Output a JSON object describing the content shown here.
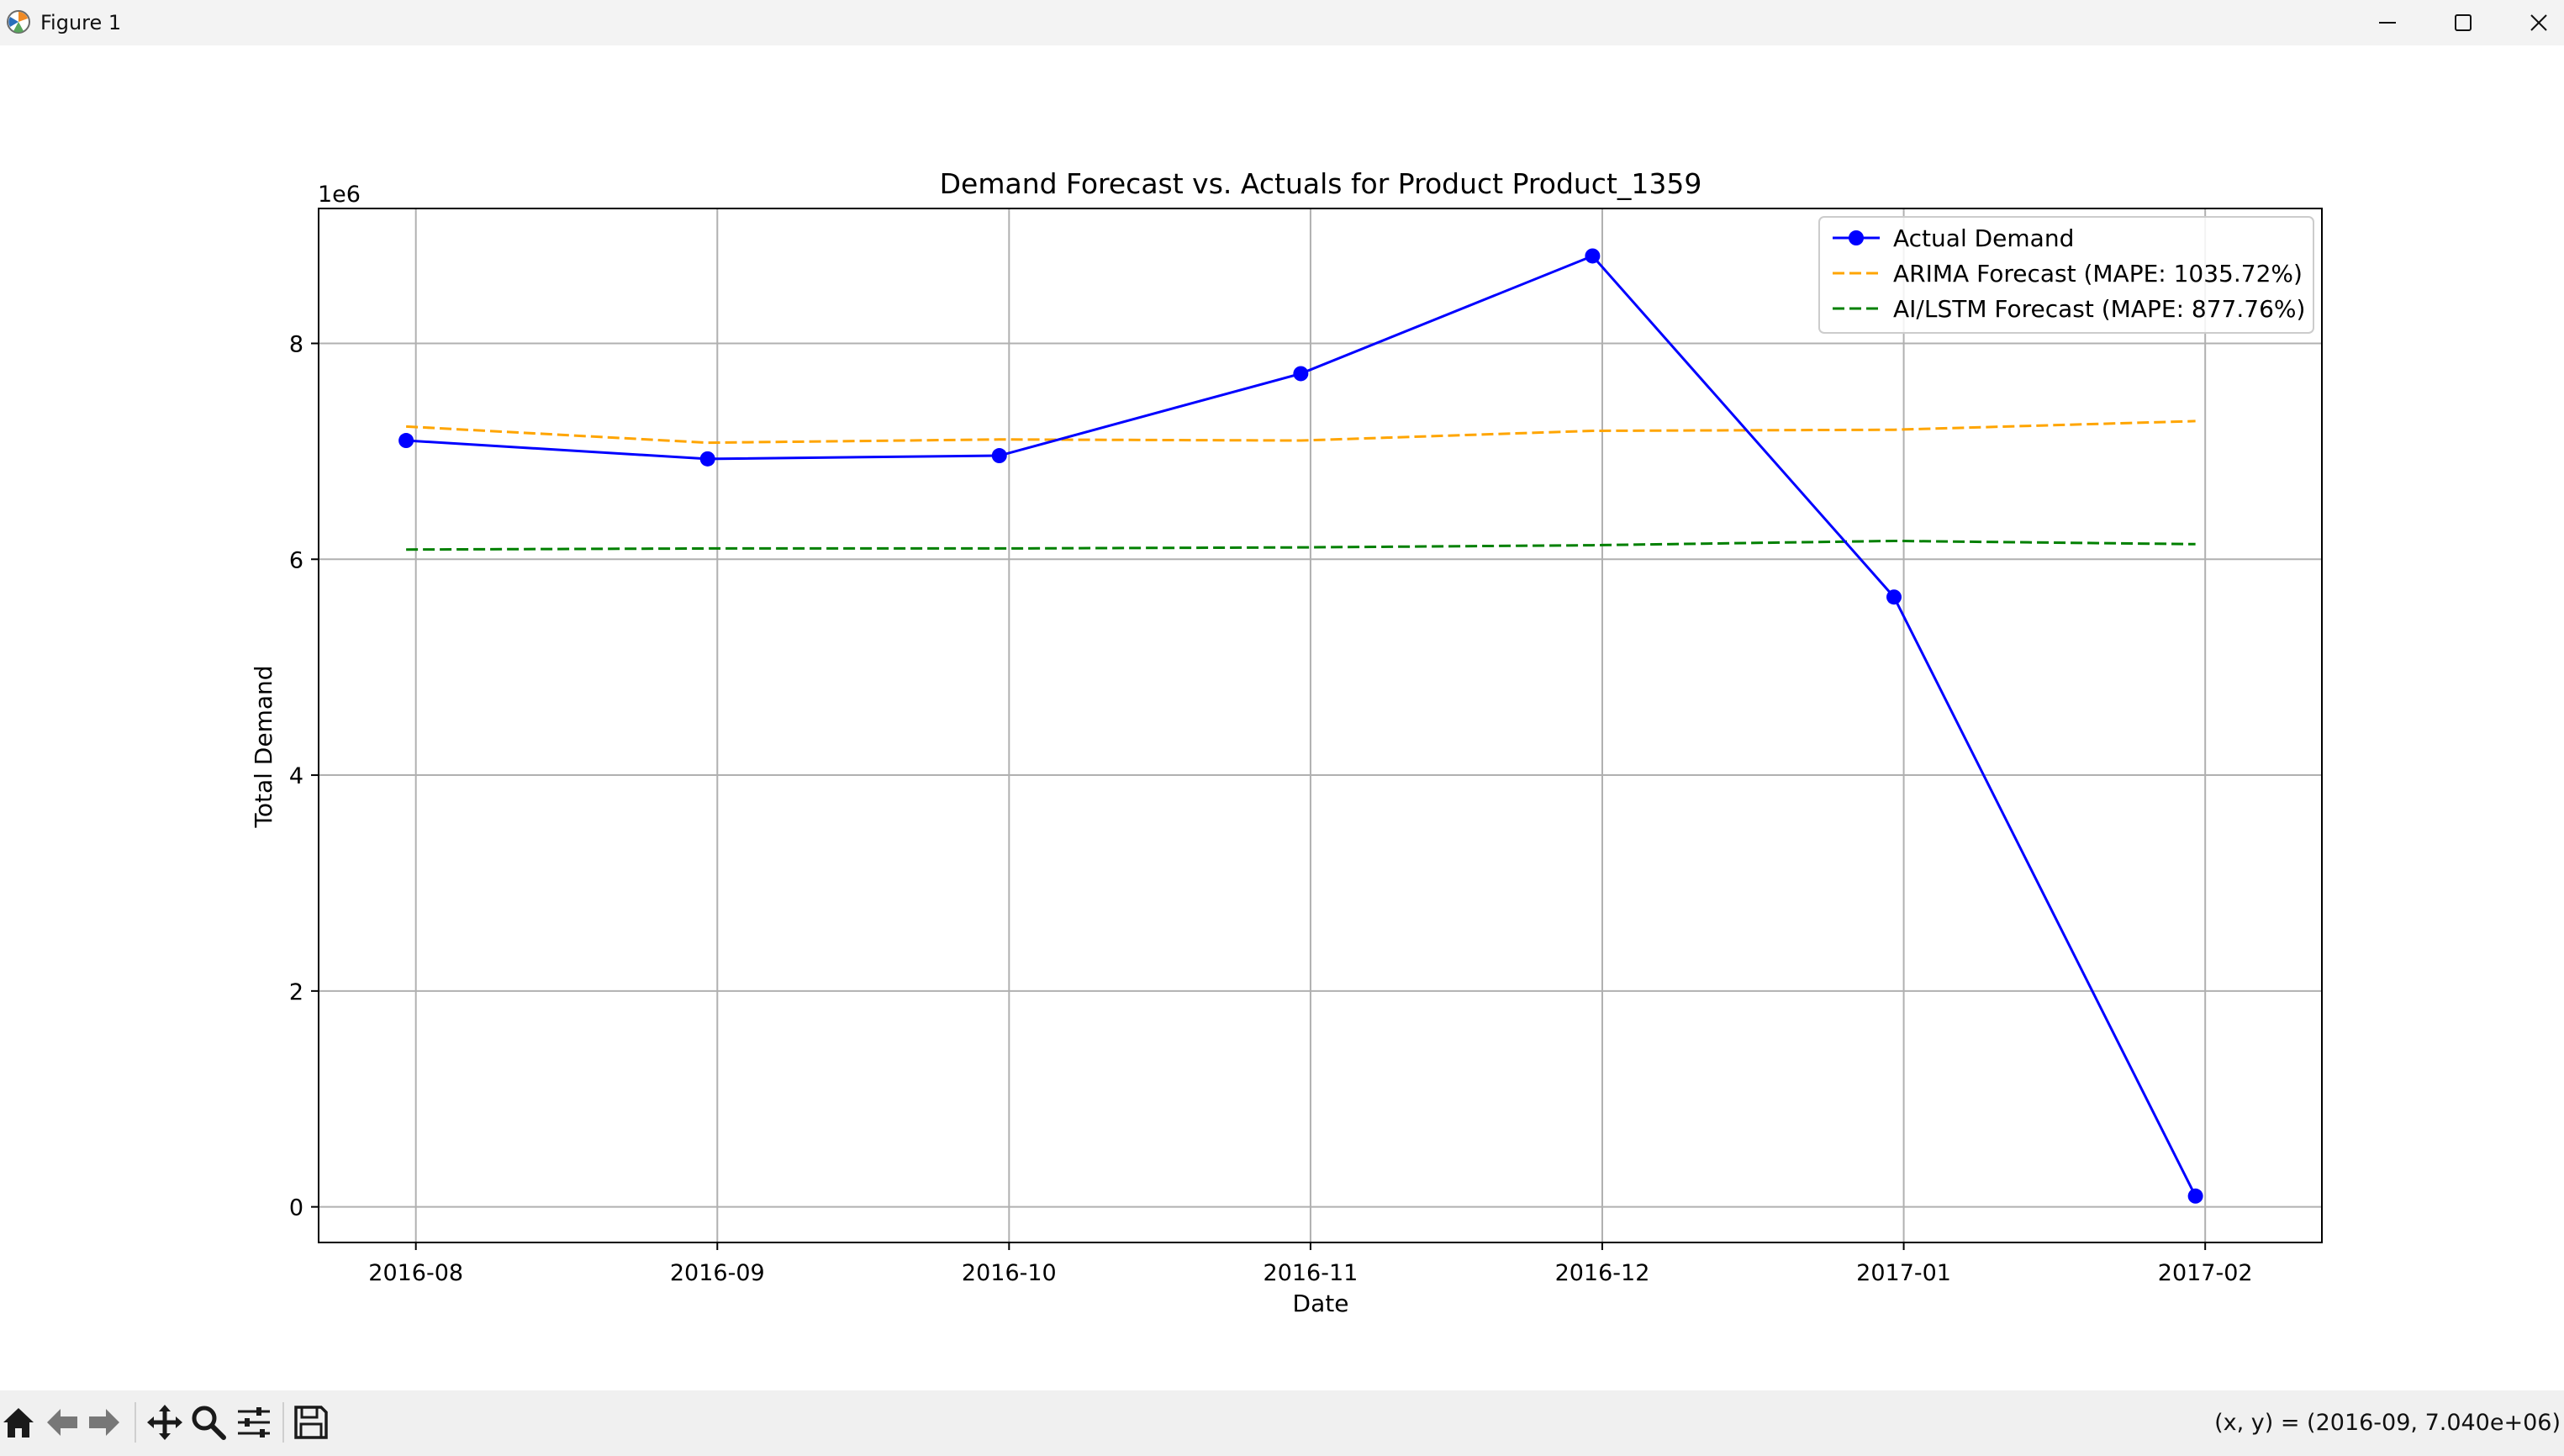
{
  "window": {
    "title": "Figure 1",
    "minimize_icon": "minimize-icon",
    "maximize_icon": "maximize-icon",
    "close_icon": "close-icon"
  },
  "toolbar": {
    "buttons": [
      "home-icon",
      "back-arrow-icon",
      "forward-arrow-icon",
      "pan-icon",
      "zoom-icon",
      "configure-subplots-icon",
      "save-icon"
    ],
    "coordinates": "(x, y) = (2016-09, 7.040e+06)"
  },
  "colors": {
    "actual": "#0000ff",
    "arima": "#ffa500",
    "lstm": "#008000",
    "grid": "#b0b0b0"
  },
  "chart_data": {
    "type": "line",
    "title": "Demand Forecast vs. Actuals for Product Product_1359",
    "xlabel": "Date",
    "ylabel": "Total Demand",
    "y_offset_label": "1e6",
    "x_tick_labels": [
      "2016-08",
      "2016-09",
      "2016-10",
      "2016-11",
      "2016-12",
      "2017-01",
      "2017-02"
    ],
    "y_tick_labels": [
      "0",
      "2",
      "4",
      "6",
      "8"
    ],
    "ylim": [
      -330000,
      9250000
    ],
    "xlim": [
      "2016-07-22",
      "2017-02-13"
    ],
    "grid": true,
    "legend_position": "top-right",
    "x": [
      "2016-07-31",
      "2016-08-31",
      "2016-09-30",
      "2016-10-31",
      "2016-11-30",
      "2016-12-31",
      "2017-01-31"
    ],
    "series": [
      {
        "name": "Actual Demand",
        "style": "solid-marker",
        "values": [
          7100000,
          6930000,
          6960000,
          7720000,
          8810000,
          5650000,
          100000
        ]
      },
      {
        "name": "ARIMA Forecast (MAPE: 1035.72%)",
        "style": "dashed",
        "values": [
          7230000,
          7080000,
          7110000,
          7100000,
          7190000,
          7200000,
          7280000
        ]
      },
      {
        "name": "AI/LSTM Forecast (MAPE: 877.76%)",
        "style": "dashed",
        "values": [
          6090000,
          6100000,
          6100000,
          6110000,
          6130000,
          6170000,
          6140000
        ]
      }
    ]
  }
}
